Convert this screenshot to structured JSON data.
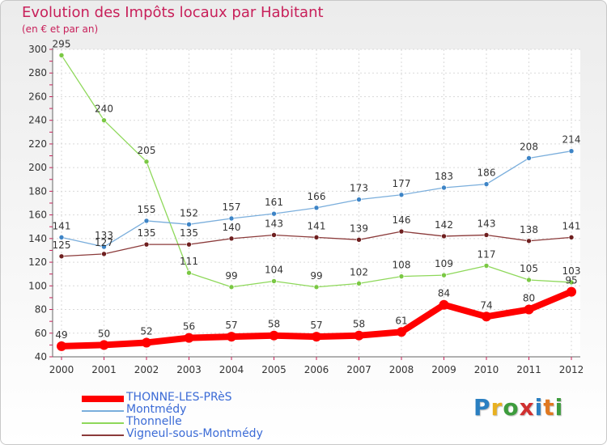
{
  "header": {
    "title": "Evolution des Impôts locaux par Habitant",
    "subtitle": "(en € et par an)"
  },
  "logo": {
    "text": "Proxiti",
    "letters": [
      "P",
      "r",
      "o",
      "x",
      "i",
      "t",
      "i"
    ],
    "letter_colors": [
      "#2a7fc1",
      "#e8b020",
      "#3d9c3d",
      "#d03030",
      "#2a7fc1",
      "#e07820",
      "#3d9c3d"
    ]
  },
  "chart_data": {
    "type": "line",
    "title": "Evolution des Impôts locaux par Habitant",
    "subtitle": "(en € et par an)",
    "xlabel": "",
    "ylabel": "",
    "ylim": [
      40,
      300
    ],
    "y_ticks": [
      40,
      60,
      80,
      100,
      120,
      140,
      160,
      180,
      200,
      220,
      240,
      260,
      280,
      300
    ],
    "categories": [
      "2000",
      "2001",
      "2002",
      "2003",
      "2004",
      "2005",
      "2006",
      "2007",
      "2008",
      "2009",
      "2010",
      "2011",
      "2012"
    ],
    "grid": true,
    "legend_position": "bottom-left",
    "series": [
      {
        "name": "Thonnelle",
        "color": "#8ed85a",
        "point_color": "#7ac843",
        "values": [
          295,
          240,
          205,
          111,
          99,
          104,
          99,
          102,
          108,
          109,
          117,
          105,
          103
        ]
      },
      {
        "name": "Montmédy",
        "color": "#7aaedc",
        "point_color": "#3d84c6",
        "values": [
          141,
          133,
          155,
          152,
          157,
          161,
          166,
          173,
          177,
          183,
          186,
          208,
          214
        ]
      },
      {
        "name": "Vigneul-sous-Montmédy",
        "color": "#8b3a3a",
        "point_color": "#6e1f1f",
        "values": [
          125,
          127,
          135,
          135,
          140,
          143,
          141,
          139,
          146,
          142,
          143,
          138,
          141
        ]
      },
      {
        "name": "THONNE-LES-PRèS",
        "color": "#ff0000",
        "point_color": "#ff0000",
        "values": [
          49,
          50,
          52,
          56,
          57,
          58,
          57,
          58,
          61,
          84,
          74,
          80,
          95
        ]
      }
    ],
    "data_labels": {
      "Thonnelle": [
        "295",
        "240",
        "205",
        "111",
        "99",
        "104",
        "99",
        "102",
        "108",
        "109",
        "117",
        "105",
        "103"
      ],
      "Montmédy": [
        "141",
        "133",
        "155",
        "152",
        "157",
        "161",
        "166",
        "173",
        "177",
        "183",
        "186",
        "208",
        "214"
      ],
      "Vigneul-sous-Montmédy": [
        "125",
        "127",
        "135",
        "135",
        "140",
        "143",
        "141",
        "139",
        "146",
        "142",
        "143",
        "138",
        "141"
      ],
      "THONNE-LES-PRèS": [
        "49",
        "50",
        "52",
        "56",
        "57",
        "58",
        "57",
        "58",
        "61",
        "84",
        "74",
        "80",
        "95"
      ]
    },
    "legend": [
      {
        "name": "THONNE-LES-PRèS",
        "color": "#ff0000"
      },
      {
        "name": "Montmédy",
        "color": "#7aaedc"
      },
      {
        "name": "Thonnelle",
        "color": "#8ed85a"
      },
      {
        "name": "Vigneul-sous-Montmédy",
        "color": "#8b3a3a"
      }
    ]
  }
}
